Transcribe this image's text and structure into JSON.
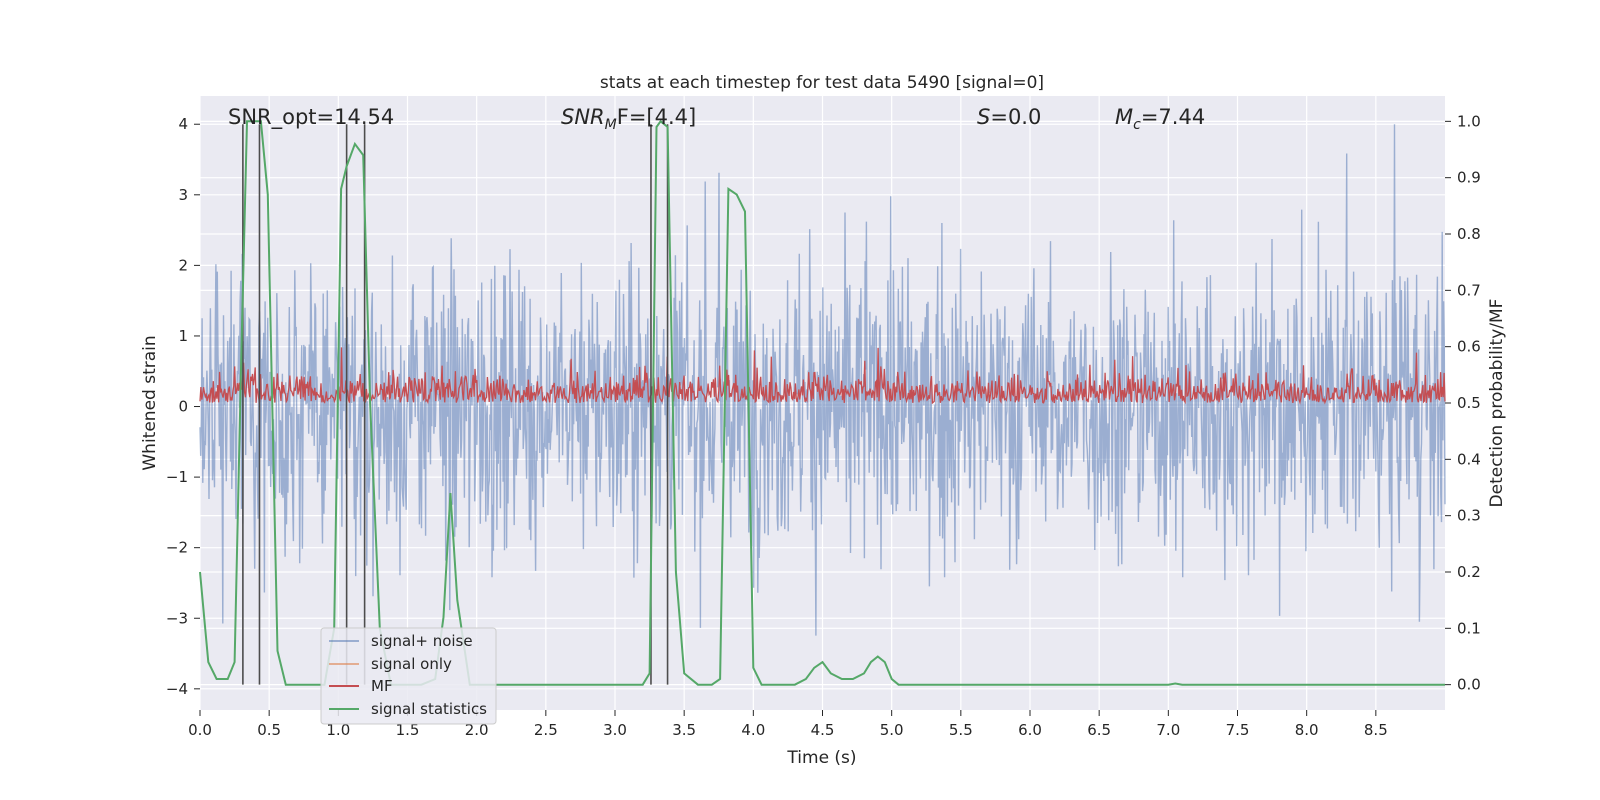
{
  "chart_data": {
    "type": "line",
    "title": "stats at each timestep for test data 5490 [signal=0]",
    "xlabel": "Time (s)",
    "ylabel_left": "Whitened strain",
    "ylabel_right": "Detection probability/MF",
    "xlim": [
      0.0,
      9.0
    ],
    "ylim_left": [
      -4.3,
      4.4
    ],
    "ylim_right": [
      -0.045,
      1.045
    ],
    "x_ticks": [
      "0.0",
      "0.5",
      "1.0",
      "1.5",
      "2.0",
      "2.5",
      "3.0",
      "3.5",
      "4.0",
      "4.5",
      "5.0",
      "5.5",
      "6.0",
      "6.5",
      "7.0",
      "7.5",
      "8.0",
      "8.5"
    ],
    "y_ticks_left": [
      "4",
      "3",
      "2",
      "1",
      "0",
      "−1",
      "−2",
      "−3",
      "−4"
    ],
    "y_ticks_right": [
      "1.0",
      "0.9",
      "0.8",
      "0.7",
      "0.6",
      "0.5",
      "0.4",
      "0.3",
      "0.2",
      "0.1",
      "0.0"
    ],
    "grid": true,
    "legend_position": "lower-left",
    "annotations": {
      "snr_opt": "SNR_opt=14.54",
      "snr_mf_sym": "SNR",
      "snr_mf_sub": "M",
      "snr_mf_rest": "F=[4.4]",
      "s_sym": "S",
      "s_rest": "=0.0",
      "mc_sym": "M",
      "mc_sub": "c",
      "mc_rest": "=7.44"
    },
    "vertical_markers_s": [
      0.31,
      0.43,
      1.06,
      1.19,
      3.26,
      3.38
    ],
    "series": [
      {
        "name": "signal+ noise",
        "axis": "left",
        "color": "#4c72b0",
        "description_envelope": "noise band, typical range -3 to +3, peaks to ±4",
        "amplitude_rms": 1.0
      },
      {
        "name": "signal only",
        "axis": "left",
        "color": "#dd8452",
        "values": []
      },
      {
        "name": "MF",
        "axis": "right",
        "color": "#c44e52",
        "typical_range": [
          0.5,
          0.55
        ],
        "peaks_to": 0.6
      },
      {
        "name": "signal statistics",
        "axis": "right",
        "color": "#55a868",
        "x": [
          0.0,
          0.06,
          0.12,
          0.2,
          0.25,
          0.3,
          0.34,
          0.38,
          0.44,
          0.49,
          0.56,
          0.62,
          0.7,
          0.8,
          0.9,
          0.97,
          1.02,
          1.06,
          1.12,
          1.18,
          1.23,
          1.3,
          1.38,
          1.5,
          1.6,
          1.7,
          1.76,
          1.81,
          1.86,
          1.95,
          2.1,
          2.5,
          3.0,
          3.2,
          3.25,
          3.3,
          3.33,
          3.38,
          3.44,
          3.5,
          3.6,
          3.7,
          3.76,
          3.82,
          3.88,
          3.94,
          4.0,
          4.06,
          4.2,
          4.3,
          4.38,
          4.44,
          4.5,
          4.56,
          4.64,
          4.72,
          4.8,
          4.85,
          4.9,
          4.95,
          5.0,
          5.05,
          5.2,
          6.0,
          7.0,
          7.05,
          7.1,
          7.5,
          8.0,
          9.0
        ],
        "y": [
          0.2,
          0.04,
          0.01,
          0.01,
          0.04,
          0.6,
          1.0,
          1.0,
          1.0,
          0.87,
          0.06,
          0.0,
          0.0,
          0.0,
          0.0,
          0.1,
          0.88,
          0.92,
          0.96,
          0.94,
          0.5,
          0.1,
          0.0,
          0.0,
          0.0,
          0.01,
          0.12,
          0.34,
          0.15,
          0.0,
          0.0,
          0.0,
          0.0,
          0.0,
          0.02,
          0.99,
          1.0,
          0.99,
          0.2,
          0.02,
          0.0,
          0.0,
          0.01,
          0.88,
          0.87,
          0.84,
          0.03,
          0.0,
          0.0,
          0.0,
          0.01,
          0.03,
          0.04,
          0.02,
          0.01,
          0.01,
          0.02,
          0.04,
          0.05,
          0.04,
          0.01,
          0.0,
          0.0,
          0.0,
          0.0,
          0.002,
          0.0,
          0.0,
          0.0,
          0.0
        ]
      }
    ]
  }
}
